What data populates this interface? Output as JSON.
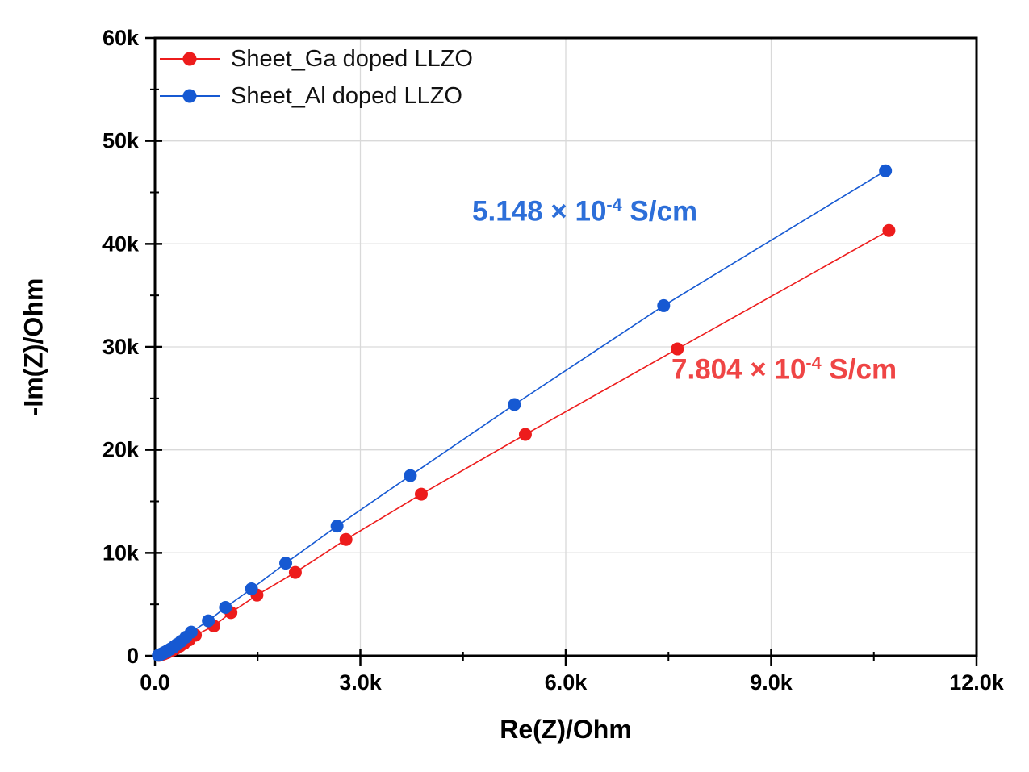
{
  "chart_data": {
    "type": "scatter",
    "subtype": "line+marker nyquist plot",
    "title": "",
    "xlabel": "Re(Z)/Ohm",
    "ylabel": "-Im(Z)/Ohm",
    "xlim": [
      0,
      12000
    ],
    "ylim": [
      0,
      60000
    ],
    "grid": true,
    "grid_color": "#d9d9d9",
    "legend_position": "top-left",
    "x_ticks": {
      "values": [
        0,
        3000,
        6000,
        9000,
        12000
      ],
      "labels": [
        "0.0",
        "3.0k",
        "6.0k",
        "9.0k",
        "12.0k"
      ],
      "minor_values": [
        1500,
        4500,
        7500,
        10500
      ]
    },
    "y_ticks": {
      "values": [
        0,
        10000,
        20000,
        30000,
        40000,
        50000,
        60000
      ],
      "labels": [
        "0",
        "10k",
        "20k",
        "30k",
        "40k",
        "50k",
        "60k"
      ],
      "minor_values": [
        5000,
        15000,
        25000,
        35000,
        45000,
        55000
      ]
    },
    "series": [
      {
        "name": "Sheet_Ga doped LLZO",
        "color": "#ed1c1c",
        "marker": "circle",
        "points": [
          [
            60,
            50
          ],
          [
            85,
            95
          ],
          [
            110,
            150
          ],
          [
            140,
            220
          ],
          [
            175,
            310
          ],
          [
            215,
            430
          ],
          [
            260,
            570
          ],
          [
            310,
            740
          ],
          [
            365,
            950
          ],
          [
            425,
            1200
          ],
          [
            500,
            1550
          ],
          [
            590,
            2000
          ],
          [
            860,
            2900
          ],
          [
            1110,
            4200
          ],
          [
            1490,
            5900
          ],
          [
            2050,
            8100
          ],
          [
            2790,
            11300
          ],
          [
            3890,
            15700
          ],
          [
            5410,
            21500
          ],
          [
            7630,
            29800
          ],
          [
            10720,
            41300
          ]
        ]
      },
      {
        "name": "Sheet_Al doped LLZO",
        "color": "#1659d2",
        "marker": "circle",
        "points": [
          [
            50,
            60
          ],
          [
            70,
            110
          ],
          [
            95,
            180
          ],
          [
            120,
            260
          ],
          [
            150,
            370
          ],
          [
            185,
            500
          ],
          [
            225,
            660
          ],
          [
            270,
            850
          ],
          [
            320,
            1100
          ],
          [
            380,
            1400
          ],
          [
            450,
            1800
          ],
          [
            530,
            2300
          ],
          [
            780,
            3400
          ],
          [
            1030,
            4700
          ],
          [
            1410,
            6500
          ],
          [
            1910,
            9000
          ],
          [
            2660,
            12600
          ],
          [
            3730,
            17500
          ],
          [
            5250,
            24400
          ],
          [
            7430,
            34000
          ],
          [
            10670,
            47100
          ]
        ]
      }
    ],
    "annotations": [
      {
        "series": "Sheet_Al doped LLZO",
        "base": "5.148 × 10",
        "exponent": "-4",
        "unit": " S/cm",
        "color": "#2d6fd9"
      },
      {
        "series": "Sheet_Ga doped LLZO",
        "base": "7.804 × 10",
        "exponent": "-4",
        "unit": " S/cm",
        "color": "#ef4545"
      }
    ]
  }
}
